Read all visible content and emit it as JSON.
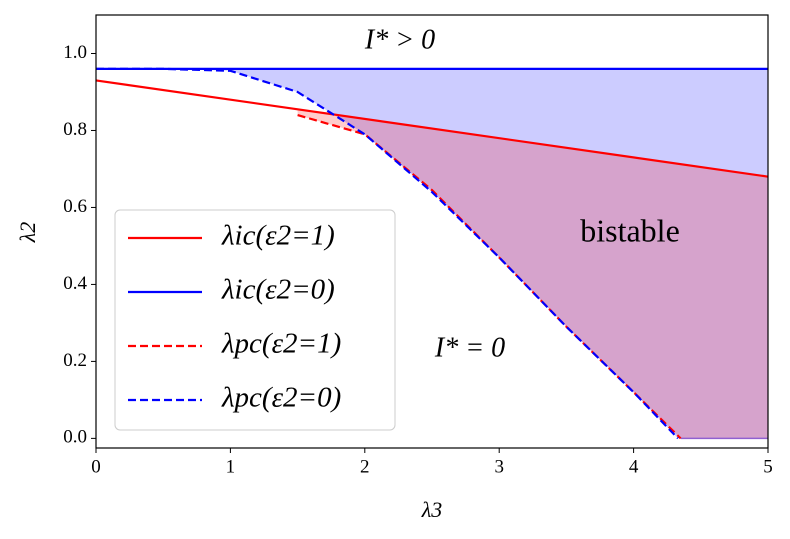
{
  "chart_data": {
    "type": "line",
    "xlabel": "λ3",
    "ylabel": "λ2",
    "xlim": [
      0,
      5
    ],
    "ylim": [
      -0.025,
      1.1
    ],
    "xticks": [
      0,
      1,
      2,
      3,
      4,
      5
    ],
    "yticks": [
      {
        "value": 0,
        "label": "0.0"
      },
      0.2,
      0.4,
      0.6,
      0.8,
      {
        "value": 1,
        "label": "1.0"
      }
    ],
    "legend": "lower left",
    "series": [
      {
        "name": "λic(ε2=1)",
        "color": "#ff0000",
        "dash": false,
        "x": [
          0,
          5
        ],
        "values": [
          0.93,
          0.68
        ]
      },
      {
        "name": "λic(ε2=0)",
        "color": "#0000ff",
        "dash": false,
        "x": [
          0,
          5
        ],
        "values": [
          0.96,
          0.96
        ]
      },
      {
        "name": "λpc(ε2=1)",
        "color": "#ff0000",
        "dash": true,
        "x": [
          1.5,
          2,
          2.5,
          3,
          3.5,
          4,
          4.35
        ],
        "values": [
          0.84,
          0.79,
          0.645,
          0.47,
          0.29,
          0.12,
          0
        ]
      },
      {
        "name": "λpc(ε2=0)",
        "color": "#0000ff",
        "dash": true,
        "x": [
          0,
          0.5,
          1,
          1.5,
          2,
          2.5,
          3,
          3.5,
          4,
          4.33
        ],
        "values": [
          0.96,
          0.96,
          0.955,
          0.9,
          0.79,
          0.64,
          0.47,
          0.29,
          0.12,
          0
        ]
      }
    ],
    "annotations": [
      "I* > 0",
      "I* = 0",
      "bistable"
    ]
  }
}
